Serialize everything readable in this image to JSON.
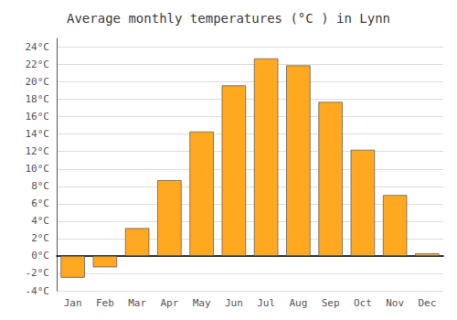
{
  "chart_data": {
    "type": "bar",
    "title": "Average monthly temperatures (°C ) in Lynn",
    "categories": [
      "Jan",
      "Feb",
      "Mar",
      "Apr",
      "May",
      "Jun",
      "Jul",
      "Aug",
      "Sep",
      "Oct",
      "Nov",
      "Dec"
    ],
    "values": [
      -2.5,
      -1.3,
      3.2,
      8.7,
      14.3,
      19.6,
      22.7,
      21.9,
      17.7,
      12.2,
      7.0,
      0.3
    ],
    "color": "#FFA820",
    "ylim": [
      -4,
      25
    ],
    "yticks": [
      {
        "value": -4,
        "label": "-4°C"
      },
      {
        "value": -2,
        "label": "-2°C"
      },
      {
        "value": 0,
        "label": "0°C"
      },
      {
        "value": 2,
        "label": "2°C"
      },
      {
        "value": 4,
        "label": "4°C"
      },
      {
        "value": 6,
        "label": "6°C"
      },
      {
        "value": 8,
        "label": "8°C"
      },
      {
        "value": 10,
        "label": "10°C"
      },
      {
        "value": 12,
        "label": "12°C"
      },
      {
        "value": 14,
        "label": "14°C"
      },
      {
        "value": 16,
        "label": "16°C"
      },
      {
        "value": 18,
        "label": "18°C"
      },
      {
        "value": 20,
        "label": "20°C"
      },
      {
        "value": 22,
        "label": "22°C"
      },
      {
        "value": 24,
        "label": "24°C"
      }
    ],
    "grid": true
  }
}
